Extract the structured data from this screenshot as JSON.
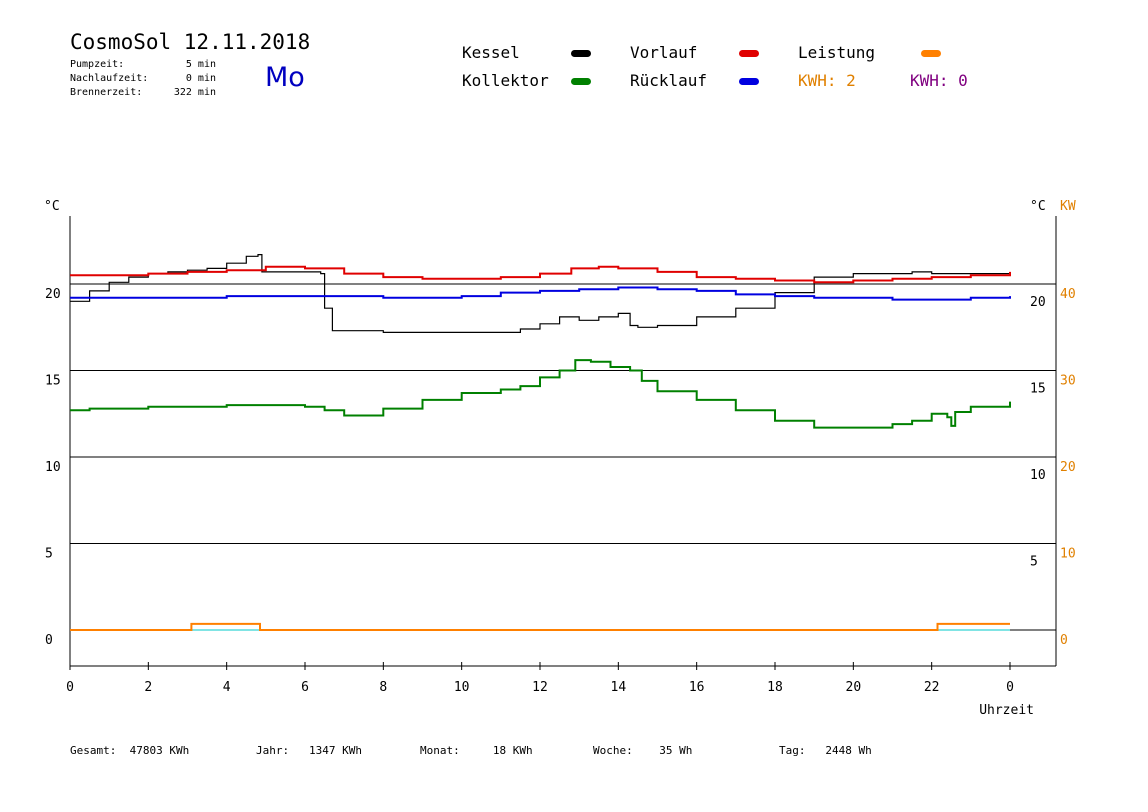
{
  "header": {
    "title": "CosmoSol 12.11.2018",
    "day": "Mo",
    "stats": [
      {
        "label": "Pumpzeit:",
        "value": "5 min"
      },
      {
        "label": "Nachlaufzeit:",
        "value": "0 min"
      },
      {
        "label": "Brennerzeit:",
        "value": "322 min"
      }
    ]
  },
  "legend": {
    "kessel": {
      "label": "Kessel",
      "color": "#000000"
    },
    "vorlauf": {
      "label": "Vorlauf",
      "color": "#e00000"
    },
    "leistung": {
      "label": "Leistung",
      "color": "#ff8000"
    },
    "kollektor": {
      "label": "Kollektor",
      "color": "#008000"
    },
    "ruecklauf": {
      "label": "Rücklauf",
      "color": "#0000e0"
    },
    "kwh1": {
      "label": "KWH: 2",
      "color": "#e08000"
    },
    "kwh2": {
      "label": "KWH: 0",
      "color": "#800080"
    }
  },
  "footer": [
    {
      "label": "Gesamt:",
      "value": "47803 KWh"
    },
    {
      "label": "Jahr:",
      "value": "1347 KWh"
    },
    {
      "label": "Monat:",
      "value": "18 KWh"
    },
    {
      "label": "Woche:",
      "value": "35 Wh"
    },
    {
      "label": "Tag:",
      "value": "2448 Wh"
    }
  ],
  "chart_data": {
    "type": "line",
    "xlabel": "Uhrzeit",
    "ylabel_left": "°C",
    "ylabel_right": "°C",
    "ylabel_right2": "KW",
    "xlim": [
      0,
      24
    ],
    "ylim": [
      -2,
      25
    ],
    "x_ticks": [
      "0",
      "2",
      "4",
      "6",
      "8",
      "10",
      "12",
      "14",
      "16",
      "18",
      "20",
      "22",
      "0"
    ],
    "y_ticks_left": [
      "0",
      "5",
      "10",
      "15",
      "20"
    ],
    "y_ticks_right": [
      "5",
      "10",
      "15",
      "20"
    ],
    "y_ticks_right2": [
      "0",
      "10",
      "20",
      "30",
      "40"
    ],
    "grid": true,
    "series": [
      {
        "name": "Kessel",
        "color": "#000000",
        "x": [
          0,
          0.5,
          1,
          1.5,
          2,
          2.5,
          3,
          3.5,
          4,
          4.5,
          4.8,
          4.9,
          6.4,
          6.5,
          6.7,
          7.5,
          8,
          9,
          10,
          11,
          11.5,
          12,
          12.5,
          13,
          13.5,
          14,
          14.3,
          14.5,
          15,
          16,
          17,
          18,
          19,
          20,
          21,
          21.5,
          22,
          23,
          24
        ],
        "y": [
          19,
          19.6,
          20.1,
          20.4,
          20.6,
          20.7,
          20.8,
          20.9,
          21.2,
          21.6,
          21.7,
          20.7,
          20.6,
          18.6,
          17.3,
          17.3,
          17.2,
          17.2,
          17.2,
          17.2,
          17.4,
          17.7,
          18.1,
          17.9,
          18.1,
          18.3,
          17.6,
          17.5,
          17.6,
          18.1,
          18.6,
          19.5,
          20.4,
          20.6,
          20.6,
          20.7,
          20.6,
          20.6,
          20.6
        ]
      },
      {
        "name": "Vorlauf",
        "color": "#e00000",
        "x": [
          0,
          2,
          3,
          4,
          5,
          6,
          7,
          8,
          9,
          10,
          11,
          12,
          12.8,
          13.5,
          14,
          15,
          16,
          17,
          18,
          19,
          20,
          21,
          22,
          23,
          24
        ],
        "y": [
          20.5,
          20.6,
          20.7,
          20.8,
          21,
          20.9,
          20.6,
          20.4,
          20.3,
          20.3,
          20.4,
          20.6,
          20.9,
          21,
          20.9,
          20.7,
          20.4,
          20.3,
          20.2,
          20.1,
          20.2,
          20.3,
          20.4,
          20.5,
          20.7
        ]
      },
      {
        "name": "Rücklauf",
        "color": "#0000e0",
        "x": [
          0,
          2,
          4,
          6,
          8,
          10,
          11,
          12,
          13,
          14,
          15,
          16,
          17,
          18,
          19,
          20,
          21,
          22,
          23,
          24
        ],
        "y": [
          19.2,
          19.2,
          19.3,
          19.3,
          19.2,
          19.3,
          19.5,
          19.6,
          19.7,
          19.8,
          19.7,
          19.6,
          19.4,
          19.3,
          19.2,
          19.2,
          19.1,
          19.1,
          19.2,
          19.3
        ]
      },
      {
        "name": "Kollektor",
        "color": "#008000",
        "x": [
          0,
          0.5,
          1,
          2,
          3,
          4,
          5,
          6,
          6.5,
          7,
          8,
          9,
          10,
          11,
          11.5,
          12,
          12.5,
          12.9,
          13.3,
          13.8,
          14.3,
          14.6,
          15,
          16,
          17,
          18,
          19,
          20,
          21,
          21.5,
          22,
          22.4,
          22.5,
          22.6,
          23,
          24
        ],
        "y": [
          12.7,
          12.8,
          12.8,
          12.9,
          12.9,
          13,
          13,
          12.9,
          12.7,
          12.4,
          12.8,
          13.3,
          13.7,
          13.9,
          14.1,
          14.6,
          15,
          15.6,
          15.5,
          15.2,
          15,
          14.4,
          13.8,
          13.3,
          12.7,
          12.1,
          11.7,
          11.7,
          11.9,
          12.1,
          12.5,
          12.3,
          11.8,
          12.6,
          12.9,
          13.2
        ]
      },
      {
        "name": "Leistung",
        "color": "#ff8000",
        "x": [
          0,
          3.05,
          3.1,
          4.8,
          4.85,
          22.1,
          22.15,
          24
        ],
        "y": [
          0,
          0,
          0.35,
          0.35,
          0,
          0,
          0.35,
          0.35
        ]
      }
    ]
  }
}
